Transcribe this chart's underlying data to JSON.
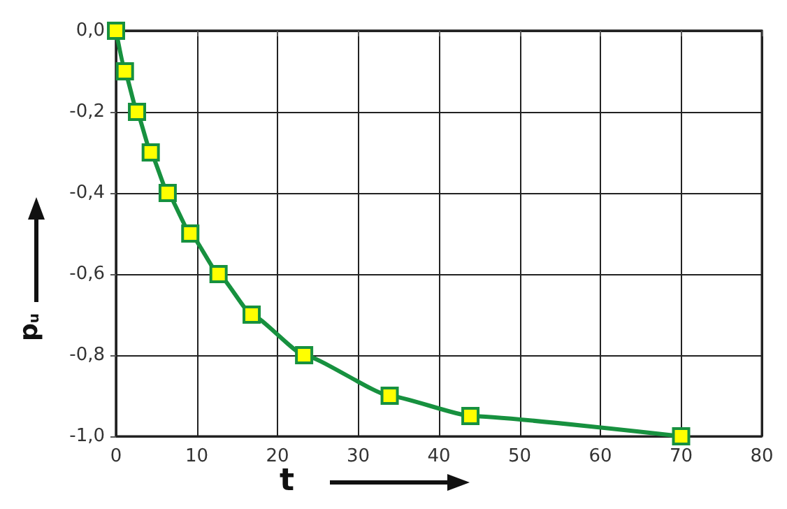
{
  "chart_data": {
    "type": "line",
    "xlabel": "t",
    "ylabel": "p$_{u}$",
    "x": [
      0,
      1.1,
      2.6,
      4.3,
      6.4,
      9.2,
      12.7,
      16.8,
      23.3,
      33.9,
      43.9,
      70
    ],
    "series": [
      {
        "color": "#17913f",
        "values": [
          0,
          -0.1,
          -0.2,
          -0.3,
          -0.4,
          -0.5,
          -0.6,
          -0.7,
          -0.8,
          -0.9,
          -0.95,
          -1.0
        ]
      }
    ],
    "xlim": [
      0,
      80
    ],
    "xticks": [
      0,
      10,
      20,
      30,
      40,
      50,
      60,
      70,
      80
    ],
    "ylim": [
      -1.0,
      0
    ],
    "yticks": [
      {
        "value": -1.0,
        "label": "-1,0"
      },
      {
        "value": -0.8,
        "label": "-0,8"
      },
      {
        "value": -0.6,
        "label": "-0,6"
      },
      {
        "value": -0.4,
        "label": "-0,4"
      },
      {
        "value": -0.2,
        "label": "-0,2"
      },
      {
        "value": 0,
        "label": "0,0"
      }
    ],
    "grid": true,
    "marker": "square",
    "line_style": "solid"
  }
}
